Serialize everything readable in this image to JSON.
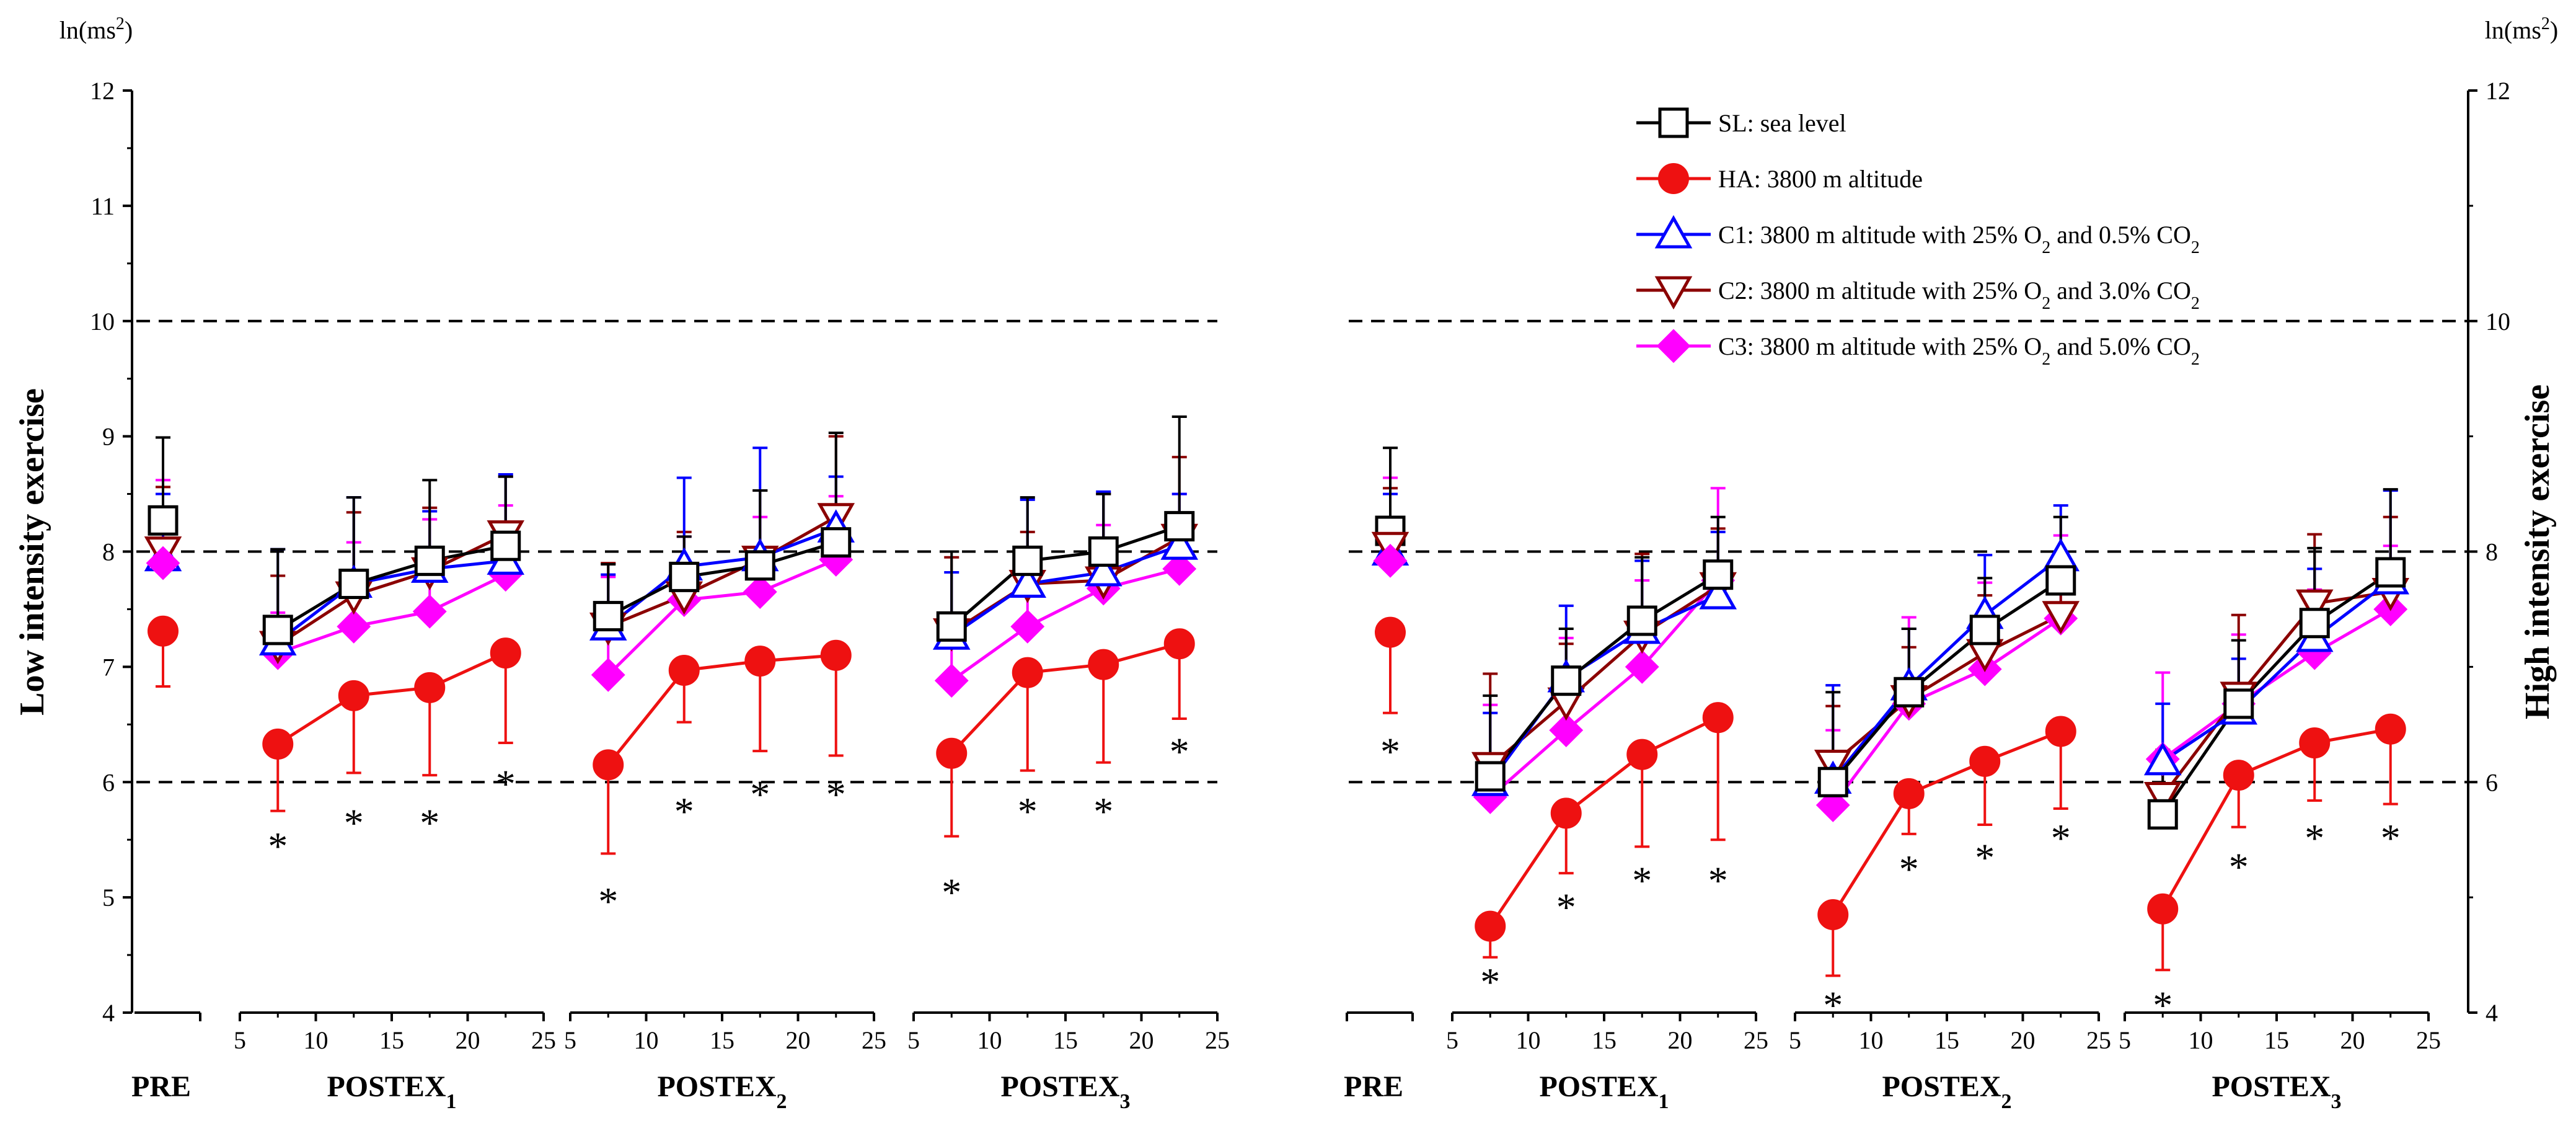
{
  "chart_data": {
    "type": "line",
    "y_unit_left": "ln(ms",
    "y_unit_right": "ln(ms",
    "y_unit_sup": "2",
    "y_unit_close": ")",
    "ylabel_left": "Low intensity exercise",
    "ylabel_right": "High intensity exercise",
    "ylim_left": [
      4,
      12
    ],
    "ylim_right": [
      4,
      12
    ],
    "yticks_left": [
      "4",
      "5",
      "6",
      "7",
      "8",
      "9",
      "10",
      "11",
      "12"
    ],
    "yticks_right": [
      "4",
      "6",
      "8",
      "10",
      "12"
    ],
    "x_ticks": [
      "5",
      "10",
      "15",
      "20",
      "25"
    ],
    "x_range": [
      5,
      25
    ],
    "reference_lines": [
      6,
      8,
      10
    ],
    "x_positions": [
      7.5,
      12.5,
      17.5,
      22.5
    ],
    "segment_labels": [
      {
        "text": "PRE",
        "sub": ""
      },
      {
        "text": "POSTEX",
        "sub": "1"
      },
      {
        "text": "POSTEX",
        "sub": "2"
      },
      {
        "text": "POSTEX",
        "sub": "3"
      }
    ],
    "legend": [
      {
        "key": "SL",
        "label": "SL: sea level",
        "color": "#000000",
        "marker": "square",
        "parts": []
      },
      {
        "key": "HA",
        "label": "HA: 3800 m altitude",
        "color": "#ee1111",
        "marker": "circle",
        "parts": []
      },
      {
        "key": "C1",
        "label": "",
        "color": "#0000ff",
        "marker": "triangle-up",
        "parts": [
          "C1: 3800 m altitude with 25% O",
          "2",
          " and 0.5% CO",
          "2"
        ]
      },
      {
        "key": "C2",
        "label": "",
        "color": "#8b0000",
        "marker": "triangle-down",
        "parts": [
          "C2: 3800 m altitude with 25% O",
          "2",
          " and 3.0% CO",
          "2"
        ]
      },
      {
        "key": "C3",
        "label": "",
        "color": "#ff00ff",
        "marker": "diamond",
        "parts": [
          "C3: 3800 m altitude with 25% O",
          "2",
          " and 5.0% CO",
          "2"
        ]
      }
    ],
    "star_symbol": "*",
    "panels": [
      {
        "name": "low-intensity",
        "pre": {
          "SL": [
            8.27,
            0.72
          ],
          "HA": [
            7.31,
            0.48
          ],
          "C1": [
            7.95,
            0.55
          ],
          "C2": [
            8.01,
            0.55
          ],
          "C3": [
            7.9,
            0.72
          ]
        },
        "pre_star": false,
        "groups": [
          {
            "SL": {
              "y": [
                7.32,
                7.72,
                7.92,
                8.05
              ],
              "err": [
                0.7,
                0.75,
                0.7,
                0.6
              ]
            },
            "HA": {
              "y": [
                6.33,
                6.75,
                6.82,
                7.12
              ],
              "err": [
                0.58,
                0.67,
                0.76,
                0.78
              ]
            },
            "C1": {
              "y": [
                7.22,
                7.72,
                7.85,
                7.92
              ],
              "err": [
                0.8,
                0.75,
                0.5,
                0.75
              ]
            },
            "C2": {
              "y": [
                7.19,
                7.62,
                7.83,
                8.15
              ],
              "err": [
                0.6,
                0.72,
                0.55,
                0.5
              ]
            },
            "C3": {
              "y": [
                7.12,
                7.35,
                7.48,
                7.8
              ],
              "err": [
                0.35,
                0.73,
                0.8,
                0.6
              ]
            },
            "stars": [
              5.48,
              5.68,
              5.68,
              6.02
            ]
          },
          {
            "SL": {
              "y": [
                7.44,
                7.78,
                7.88,
                8.08
              ],
              "err": [
                0.45,
                0.35,
                0.65,
                0.95
              ]
            },
            "HA": {
              "y": [
                6.15,
                6.97,
                7.05,
                7.1
              ],
              "err": [
                0.77,
                0.45,
                0.78,
                0.87
              ]
            },
            "C1": {
              "y": [
                7.35,
                7.87,
                7.95,
                8.2
              ],
              "err": [
                0.45,
                0.77,
                0.95,
                0.45
              ]
            },
            "C2": {
              "y": [
                7.35,
                7.62,
                7.93,
                8.3
              ],
              "err": [
                0.55,
                0.55,
                0.6,
                0.7
              ]
            },
            "C3": {
              "y": [
                6.93,
                7.58,
                7.65,
                7.93
              ],
              "err": [
                0.85,
                0.55,
                0.65,
                0.55
              ]
            },
            "stars": [
              5.0,
              5.78,
              5.93,
              5.93
            ]
          },
          {
            "SL": {
              "y": [
                7.35,
                7.92,
                8.0,
                8.22
              ],
              "err": [
                0.65,
                0.55,
                0.5,
                0.95
              ]
            },
            "HA": {
              "y": [
                6.25,
                6.95,
                7.02,
                7.2
              ],
              "err": [
                0.72,
                0.85,
                0.85,
                0.65
              ]
            },
            "C1": {
              "y": [
                7.27,
                7.72,
                7.82,
                8.05
              ],
              "err": [
                0.55,
                0.73,
                0.7,
                0.45
              ]
            },
            "C2": {
              "y": [
                7.3,
                7.72,
                7.75,
                8.12
              ],
              "err": [
                0.65,
                0.45,
                0.75,
                0.7
              ]
            },
            "C3": {
              "y": [
                6.88,
                7.35,
                7.68,
                7.85
              ],
              "err": [
                0.55,
                0.65,
                0.55,
                0.65
              ]
            },
            "stars": [
              5.08,
              5.78,
              5.78,
              6.3
            ]
          }
        ]
      },
      {
        "name": "high-intensity",
        "pre": {
          "SL": [
            8.18,
            0.72
          ],
          "HA": [
            7.3,
            0.7
          ],
          "C1": [
            8.0,
            0.5
          ],
          "C2": [
            8.05,
            0.5
          ],
          "C3": [
            7.92,
            0.72
          ]
        },
        "pre_star": true,
        "pre_star_y": 6.3,
        "groups": [
          {
            "SL": {
              "y": [
                6.05,
                6.88,
                7.4,
                7.8
              ],
              "err": [
                0.7,
                0.45,
                0.55,
                0.5
              ]
            },
            "HA": {
              "y": [
                4.75,
                5.73,
                6.24,
                6.56
              ],
              "err": [
                0.27,
                0.52,
                0.8,
                1.06
              ]
            },
            "C1": {
              "y": [
                6.0,
                6.9,
                7.32,
                7.62
              ],
              "err": [
                0.6,
                0.63,
                0.6,
                0.55
              ]
            },
            "C2": {
              "y": [
                6.14,
                6.7,
                7.28,
                7.7
              ],
              "err": [
                0.8,
                0.5,
                0.7,
                0.5
              ]
            },
            "C3": {
              "y": [
                5.87,
                6.45,
                7.0,
                7.75
              ],
              "err": [
                0.8,
                0.8,
                0.75,
                0.8
              ]
            },
            "stars": [
              4.3,
              4.95,
              5.18,
              5.18
            ]
          },
          {
            "SL": {
              "y": [
                6.0,
                6.78,
                7.32,
                7.75
              ],
              "err": [
                0.78,
                0.55,
                0.45,
                0.55
              ]
            },
            "HA": {
              "y": [
                4.85,
                5.9,
                6.18,
                6.44
              ],
              "err": [
                0.53,
                0.35,
                0.55,
                0.67
              ]
            },
            "C1": {
              "y": [
                6.02,
                6.83,
                7.45,
                7.95
              ],
              "err": [
                0.82,
                0.5,
                0.52,
                0.45
              ]
            },
            "C2": {
              "y": [
                6.16,
                6.72,
                7.12,
                7.45
              ],
              "err": [
                0.5,
                0.45,
                0.5,
                0.5
              ]
            },
            "C3": {
              "y": [
                5.8,
                6.68,
                6.98,
                7.42
              ],
              "err": [
                0.65,
                0.75,
                0.75,
                0.72
              ]
            },
            "stars": [
              4.1,
              5.28,
              5.38,
              5.55
            ]
          },
          {
            "SL": {
              "y": [
                5.72,
                6.68,
                7.38,
                7.82
              ],
              "err": [
                0.55,
                0.55,
                0.65,
                0.72
              ]
            },
            "HA": {
              "y": [
                4.9,
                6.06,
                6.34,
                6.46
              ],
              "err": [
                0.53,
                0.45,
                0.5,
                0.65
              ]
            },
            "C1": {
              "y": [
                6.18,
                6.62,
                7.25,
                7.75
              ],
              "err": [
                0.5,
                0.45,
                0.6,
                0.78
              ]
            },
            "C2": {
              "y": [
                5.88,
                6.75,
                7.55,
                7.65
              ],
              "err": [
                0.4,
                0.7,
                0.6,
                0.65
              ]
            },
            "C3": {
              "y": [
                6.2,
                6.68,
                7.12,
                7.5
              ],
              "err": [
                0.75,
                0.6,
                0.55,
                0.55
              ]
            },
            "stars": [
              4.1,
              5.3,
              5.55,
              5.55
            ]
          }
        ]
      }
    ]
  }
}
